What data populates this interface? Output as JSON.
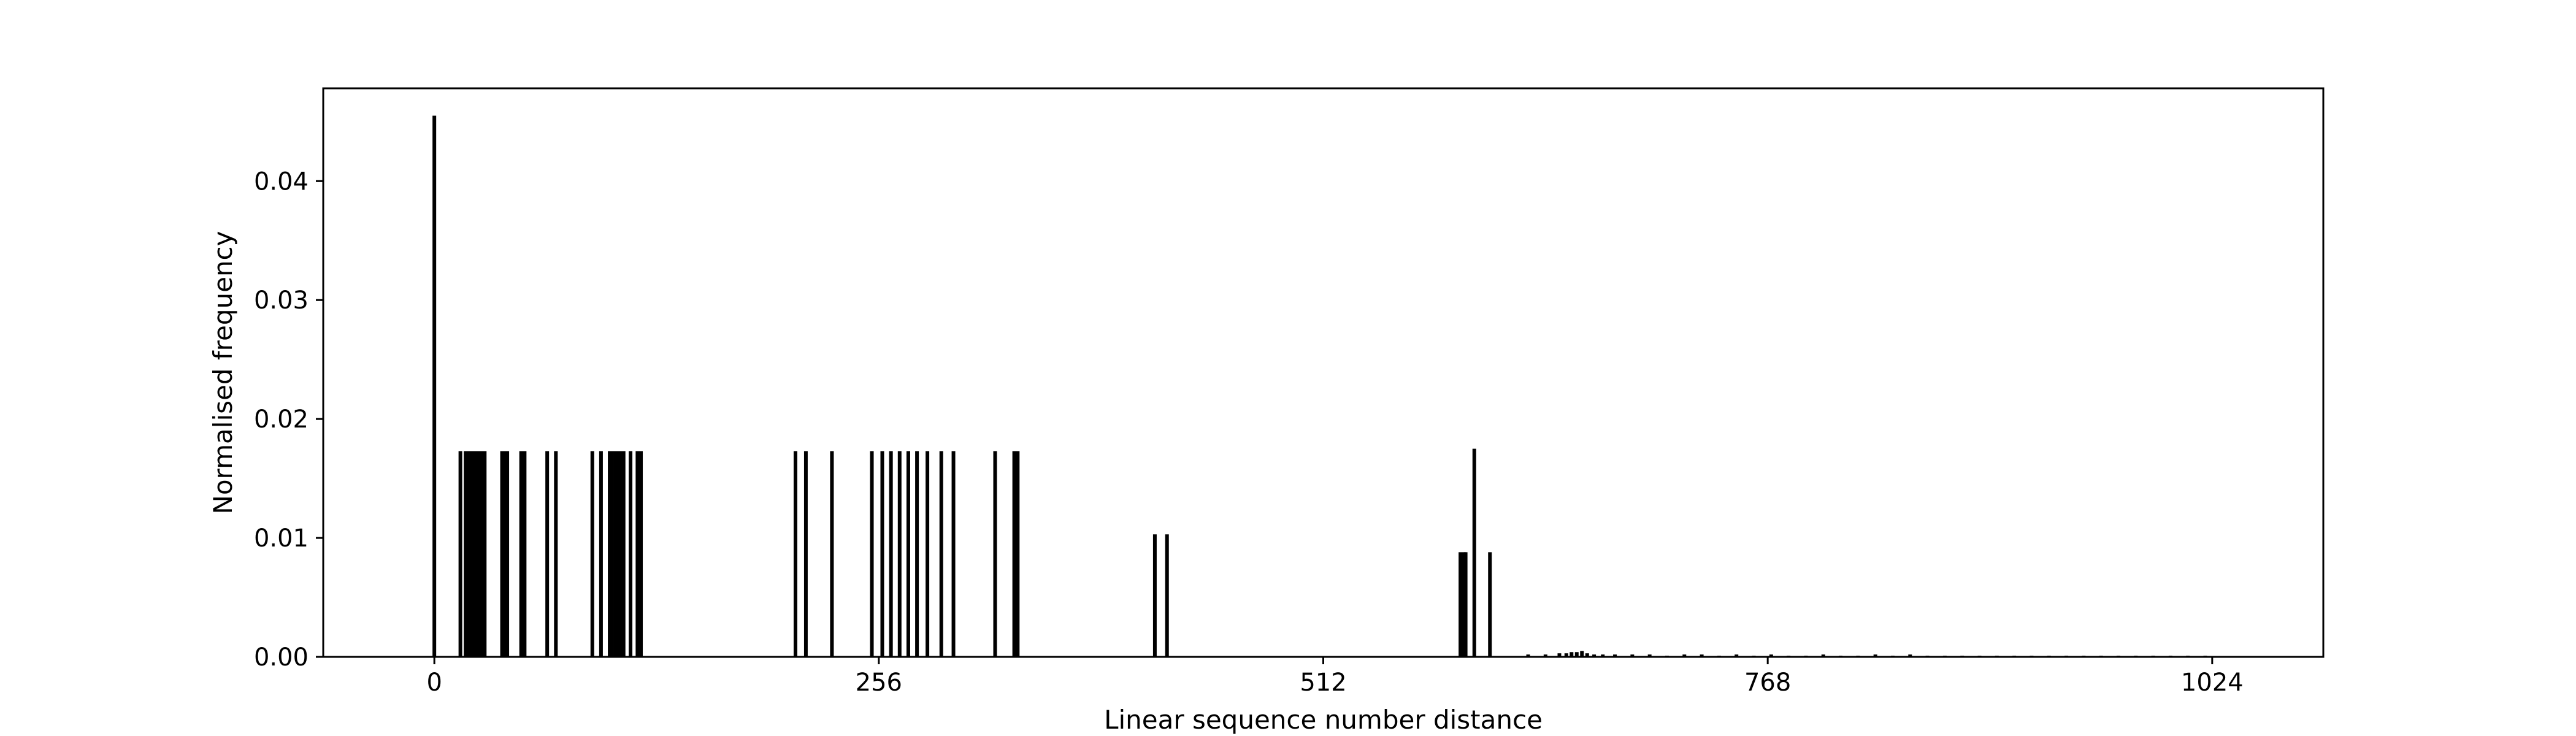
{
  "chart_data": {
    "type": "bar",
    "title": "",
    "xlabel": "Linear sequence number distance",
    "ylabel": "Normalised frequency",
    "xlim": [
      -64,
      1088
    ],
    "ylim": [
      0,
      0.0478
    ],
    "xticks": [
      0,
      256,
      512,
      768,
      1024
    ],
    "xtick_labels": [
      "0",
      "256",
      "512",
      "768",
      "1024"
    ],
    "yticks": [
      0.0,
      0.01,
      0.02,
      0.03,
      0.04
    ],
    "ytick_labels": [
      "0.00",
      "0.01",
      "0.02",
      "0.03",
      "0.04"
    ],
    "grid": false,
    "legend": false,
    "bar_color": "#000000",
    "series": [
      {
        "x": [
          0,
          15,
          18,
          19,
          20,
          21,
          22,
          23,
          24,
          25,
          26,
          28,
          29,
          39,
          40,
          41,
          42,
          50,
          51,
          52,
          65,
          70,
          91,
          96,
          101,
          102,
          104,
          106,
          108,
          109,
          113,
          117,
          119,
          208,
          214,
          229,
          252,
          258,
          263,
          268,
          273,
          278,
          284,
          292,
          299,
          323,
          334,
          336,
          415,
          422,
          591,
          593,
          594,
          599,
          608
        ],
        "values": [
          0.0455,
          0.0173,
          0.0173,
          0.0173,
          0.0173,
          0.0173,
          0.0173,
          0.0173,
          0.0173,
          0.0173,
          0.0173,
          0.0173,
          0.0173,
          0.0173,
          0.0173,
          0.0173,
          0.0173,
          0.0173,
          0.0173,
          0.0173,
          0.0173,
          0.0173,
          0.0173,
          0.0173,
          0.0173,
          0.0173,
          0.0173,
          0.0173,
          0.0173,
          0.0173,
          0.0173,
          0.0173,
          0.0173,
          0.0173,
          0.0173,
          0.0173,
          0.0173,
          0.0173,
          0.0173,
          0.0173,
          0.0173,
          0.0173,
          0.0173,
          0.0173,
          0.0173,
          0.0173,
          0.0173,
          0.0173,
          0.0103,
          0.0103,
          0.0088,
          0.0088,
          0.0088,
          0.0175,
          0.0088
        ]
      },
      {
        "x": [
          630,
          640,
          648,
          652,
          655,
          658,
          661,
          664,
          668,
          673,
          680,
          690,
          700,
          710,
          720,
          730,
          740,
          750,
          760,
          770,
          780,
          790,
          800,
          810,
          820,
          830,
          840,
          850,
          860,
          870,
          880,
          890,
          900,
          910,
          920,
          930,
          940,
          950,
          960,
          970,
          980,
          990,
          1000,
          1010,
          1020
        ],
        "values": [
          0.0002,
          0.0002,
          0.0003,
          0.0003,
          0.0004,
          0.0004,
          0.0005,
          0.0003,
          0.0002,
          0.0002,
          0.0002,
          0.0002,
          0.0002,
          0.0001,
          0.0002,
          0.0002,
          0.0001,
          0.0002,
          0.0001,
          0.0002,
          0.0001,
          0.0001,
          0.0002,
          0.0001,
          0.0001,
          0.0002,
          0.0001,
          0.0002,
          0.0001,
          0.0001,
          0.0001,
          0.0001,
          0.0001,
          0.0001,
          0.0001,
          0.0001,
          0.0001,
          0.0001,
          0.0001,
          0.0001,
          0.0001,
          0.0001,
          0.0001,
          0.0001,
          0.0001
        ]
      }
    ]
  }
}
